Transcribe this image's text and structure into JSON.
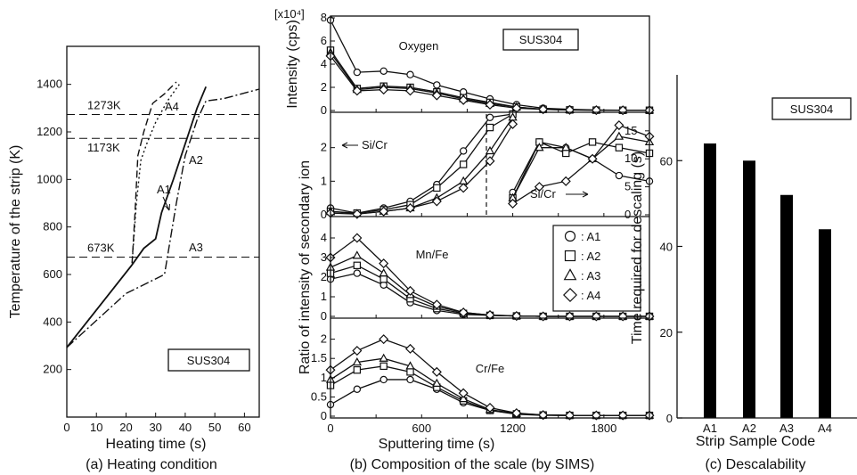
{
  "chart_data": [
    {
      "type": "line",
      "caption": "(a) Heating condition",
      "xlabel": "Heating time (s)",
      "ylabel": "Temperature of the strip (K)",
      "xlim": [
        0,
        65
      ],
      "ylim": [
        0,
        1560
      ],
      "x_ticks": [
        "0",
        "10",
        "20",
        "30",
        "40",
        "50",
        "60"
      ],
      "y_ticks": [
        "200",
        "400",
        "600",
        "800",
        "1000",
        "1200",
        "1400"
      ],
      "box_label": "SUS304",
      "reference_lines": [
        {
          "label": "1273K",
          "y": 1273
        },
        {
          "label": "1173K",
          "y": 1173
        },
        {
          "label": "673K",
          "y": 673
        }
      ],
      "series": [
        {
          "name": "A1",
          "style": "solid",
          "x": [
            0,
            22,
            26,
            30,
            32,
            36,
            40,
            44,
            47
          ],
          "y": [
            293,
            640,
            710,
            750,
            860,
            1000,
            1150,
            1300,
            1390
          ]
        },
        {
          "name": "A2",
          "style": "dotted",
          "x": [
            0,
            22,
            23.5,
            25,
            27,
            30,
            34,
            38
          ],
          "y": [
            293,
            640,
            900,
            1080,
            1150,
            1240,
            1330,
            1400
          ]
        },
        {
          "name": "A3",
          "style": "dash-dot",
          "x": [
            0,
            20,
            33,
            37,
            40,
            44,
            47,
            53,
            65
          ],
          "y": [
            293,
            520,
            600,
            900,
            1100,
            1250,
            1330,
            1340,
            1380
          ]
        },
        {
          "name": "A4",
          "style": "dashed",
          "x": [
            0,
            22,
            23,
            24,
            26,
            29,
            33,
            37
          ],
          "y": [
            293,
            640,
            850,
            1100,
            1200,
            1320,
            1360,
            1410
          ]
        }
      ]
    },
    {
      "type": "line",
      "caption": "(b) Composition of the scale (by SIMS)",
      "xlabel": "Sputtering time (s)",
      "ylabel_top": "Intensity (cps)",
      "ylabel_main": "Ratio of intensity of secondary ion",
      "scale_note": "[x10⁴]",
      "x_ticks": [
        "0",
        "600",
        "1200",
        "1800"
      ],
      "xlim": [
        0,
        2100
      ],
      "legend": [
        {
          "marker": "circle",
          "label": ": A1"
        },
        {
          "marker": "square",
          "label": ": A2"
        },
        {
          "marker": "triangle",
          "label": ": A3"
        },
        {
          "marker": "diamond",
          "label": ": A4"
        }
      ],
      "panels": [
        {
          "id": "oxygen",
          "label": "Oxygen",
          "box_label": "SUS304",
          "ylim": [
            0,
            8
          ],
          "y_ticks": [
            "0",
            "2",
            "4",
            "6",
            "8"
          ],
          "x": [
            0,
            175,
            350,
            525,
            700,
            875,
            1050,
            1225,
            1400,
            1575,
            1750,
            1925,
            2100
          ],
          "series": [
            {
              "name": "A1",
              "values": [
                7.8,
                3.3,
                3.4,
                3.1,
                2.2,
                1.6,
                1.0,
                0.5,
                0.2,
                0.1,
                0.05,
                0.03,
                0.02
              ]
            },
            {
              "name": "A2",
              "values": [
                5.2,
                1.9,
                2.1,
                2.0,
                1.6,
                1.1,
                0.7,
                0.3,
                0.1,
                0.05,
                0.03,
                0.02,
                0.02
              ]
            },
            {
              "name": "A3",
              "values": [
                5.0,
                1.8,
                2.0,
                1.9,
                1.5,
                1.0,
                0.6,
                0.3,
                0.1,
                0.05,
                0.03,
                0.02,
                0.02
              ]
            },
            {
              "name": "A4",
              "values": [
                4.7,
                1.7,
                1.8,
                1.7,
                1.3,
                0.9,
                0.5,
                0.2,
                0.1,
                0.05,
                0.03,
                0.02,
                0.02
              ]
            }
          ]
        },
        {
          "id": "sicr",
          "label_left": "Si/Cr",
          "label_right": "Si/Cr",
          "ylim": [
            0,
            3
          ],
          "y_ticks": [
            "0",
            "1",
            "2"
          ],
          "ylim_right": [
            0,
            18
          ],
          "y_ticks_right": [
            "0",
            "5",
            "10",
            "15"
          ],
          "x_left": [
            0,
            175,
            350,
            525,
            700,
            875,
            1050,
            1200
          ],
          "x_right": [
            1200,
            1375,
            1550,
            1725,
            1900,
            2100
          ],
          "series_left": [
            {
              "name": "A1",
              "values": [
                0.2,
                0.05,
                0.2,
                0.4,
                0.9,
                1.9,
                2.9,
                3.0
              ]
            },
            {
              "name": "A2",
              "values": [
                0.1,
                0.05,
                0.15,
                0.3,
                0.8,
                1.5,
                2.6,
                3.0
              ]
            },
            {
              "name": "A3",
              "values": [
                0.1,
                0.03,
                0.1,
                0.2,
                0.5,
                1.0,
                1.9,
                2.9
              ]
            },
            {
              "name": "A4",
              "values": [
                0.05,
                0.02,
                0.1,
                0.2,
                0.4,
                0.8,
                1.6,
                2.7
              ]
            }
          ],
          "series_right": [
            {
              "name": "A1",
              "values": [
                4,
                13,
                12,
                10,
                7,
                6
              ]
            },
            {
              "name": "A2",
              "values": [
                3,
                13,
                11,
                13,
                12,
                11
              ]
            },
            {
              "name": "A3",
              "values": [
                3,
                12,
                12,
                10,
                14,
                13
              ]
            },
            {
              "name": "A4",
              "values": [
                2,
                5,
                6,
                10,
                16,
                14
              ]
            }
          ]
        },
        {
          "id": "mnfe",
          "label": "Mn/Fe",
          "ylim": [
            0,
            5
          ],
          "y_ticks": [
            "0",
            "1",
            "2",
            "3",
            "4"
          ],
          "x": [
            0,
            175,
            350,
            525,
            700,
            875,
            1050,
            1225,
            1400,
            1575,
            1750,
            1925,
            2100
          ],
          "series": [
            {
              "name": "A1",
              "values": [
                1.9,
                2.2,
                1.6,
                0.7,
                0.3,
                0.1,
                0.05,
                0.02,
                0,
                0,
                0,
                0,
                0
              ]
            },
            {
              "name": "A2",
              "values": [
                2.2,
                2.6,
                1.9,
                0.9,
                0.4,
                0.15,
                0.05,
                0.02,
                0,
                0,
                0,
                0,
                0
              ]
            },
            {
              "name": "A3",
              "values": [
                2.5,
                3.1,
                2.2,
                1.1,
                0.5,
                0.2,
                0.06,
                0.02,
                0,
                0,
                0,
                0,
                0
              ]
            },
            {
              "name": "A4",
              "values": [
                3.0,
                4.0,
                2.7,
                1.3,
                0.6,
                0.2,
                0.07,
                0.02,
                0,
                0,
                0,
                0,
                0
              ]
            }
          ]
        },
        {
          "id": "crfe",
          "label": "Cr/Fe",
          "ylim": [
            0,
            2.5
          ],
          "y_ticks": [
            "0",
            "0.5",
            "1",
            "1.5",
            "2"
          ],
          "x": [
            0,
            175,
            350,
            525,
            700,
            875,
            1050,
            1225,
            1400,
            1575,
            1750,
            1925,
            2100
          ],
          "series": [
            {
              "name": "A1",
              "values": [
                0.3,
                0.7,
                0.95,
                0.95,
                0.7,
                0.35,
                0.15,
                0.05,
                0.02,
                0.02,
                0.02,
                0.02,
                0.02
              ]
            },
            {
              "name": "A2",
              "values": [
                0.8,
                1.2,
                1.3,
                1.15,
                0.75,
                0.4,
                0.15,
                0.06,
                0.03,
                0.02,
                0.02,
                0.02,
                0.02
              ]
            },
            {
              "name": "A3",
              "values": [
                0.95,
                1.4,
                1.5,
                1.3,
                0.85,
                0.45,
                0.17,
                0.07,
                0.03,
                0.02,
                0.02,
                0.02,
                0.02
              ]
            },
            {
              "name": "A4",
              "values": [
                1.2,
                1.7,
                2.0,
                1.75,
                1.15,
                0.6,
                0.22,
                0.08,
                0.03,
                0.02,
                0.02,
                0.02,
                0.02
              ]
            }
          ]
        }
      ]
    },
    {
      "type": "bar",
      "caption": "(c) Descalability",
      "xlabel": "Strip Sample Code",
      "ylabel": "Time required for descaling (s)",
      "box_label": "SUS304",
      "categories": [
        "A1",
        "A2",
        "A3",
        "A4"
      ],
      "values": [
        64,
        60,
        52,
        44
      ],
      "ylim": [
        0,
        80
      ],
      "y_ticks": [
        "0",
        "20",
        "40",
        "60"
      ]
    }
  ]
}
